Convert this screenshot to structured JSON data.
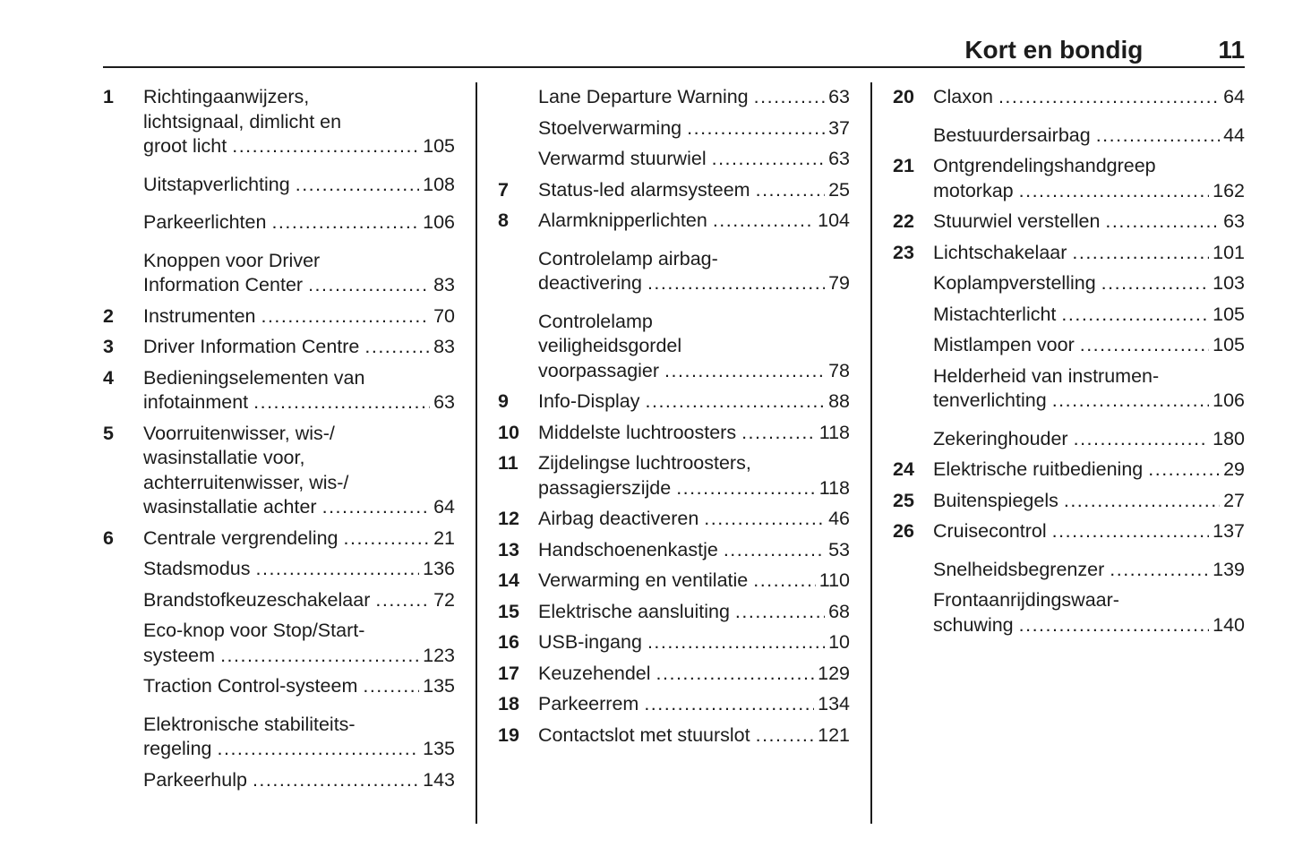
{
  "header": {
    "title": "Kort en bondig",
    "page_number": "11"
  },
  "columns": [
    {
      "entries": [
        {
          "num": "1",
          "lines": [
            "Richtingaanwijzers,",
            "lichtsignaal, dimlicht en",
            "groot licht"
          ],
          "page": "105",
          "gap": false
        },
        {
          "num": "",
          "lines": [
            "Uitstapverlichting"
          ],
          "page": "108",
          "gap": true
        },
        {
          "num": "",
          "lines": [
            "Parkeerlichten"
          ],
          "page": "106",
          "gap": true
        },
        {
          "num": "",
          "lines": [
            "Knoppen voor Driver",
            "Information Center"
          ],
          "page": "83",
          "gap": true
        },
        {
          "num": "2",
          "lines": [
            "Instrumenten"
          ],
          "page": "70",
          "gap": false
        },
        {
          "num": "3",
          "lines": [
            "Driver Information Centre"
          ],
          "page": "83",
          "gap": false
        },
        {
          "num": "4",
          "lines": [
            "Bedieningselementen van",
            "infotainment"
          ],
          "page": "63",
          "gap": false
        },
        {
          "num": "5",
          "lines": [
            "Voorruitenwisser, wis-/",
            "wasinstallatie voor,",
            "achterruitenwisser, wis-/",
            "wasinstallatie achter"
          ],
          "page": "64",
          "gap": false
        },
        {
          "num": "6",
          "lines": [
            "Centrale vergrendeling"
          ],
          "page": "21",
          "gap": false
        },
        {
          "num": "",
          "lines": [
            "Stadsmodus"
          ],
          "page": "136",
          "gap": false
        },
        {
          "num": "",
          "lines": [
            "Brandstofkeuzeschakelaar"
          ],
          "page": "72",
          "gap": false
        },
        {
          "num": "",
          "lines": [
            "Eco-knop voor Stop/Start-",
            "systeem"
          ],
          "page": "123",
          "gap": false
        },
        {
          "num": "",
          "lines": [
            "Traction Control-systeem"
          ],
          "page": "135",
          "gap": false
        },
        {
          "num": "",
          "lines": [
            "Elektronische stabiliteits-",
            "regeling"
          ],
          "page": "135",
          "gap": true
        },
        {
          "num": "",
          "lines": [
            "Parkeerhulp"
          ],
          "page": "143",
          "gap": false
        }
      ]
    },
    {
      "entries": [
        {
          "num": "",
          "lines": [
            "Lane Departure Warning"
          ],
          "page": "63",
          "gap": false
        },
        {
          "num": "",
          "lines": [
            "Stoelverwarming"
          ],
          "page": "37",
          "gap": false
        },
        {
          "num": "",
          "lines": [
            "Verwarmd stuurwiel"
          ],
          "page": "63",
          "gap": false
        },
        {
          "num": "7",
          "lines": [
            "Status-led alarmsysteem"
          ],
          "page": "25",
          "gap": false
        },
        {
          "num": "8",
          "lines": [
            "Alarmknipperlichten"
          ],
          "page": "104",
          "gap": false
        },
        {
          "num": "",
          "lines": [
            "Controlelamp airbag-",
            "deactivering"
          ],
          "page": "79",
          "gap": true
        },
        {
          "num": "",
          "lines": [
            "Controlelamp",
            "veiligheidsgordel",
            "voorpassagier"
          ],
          "page": "78",
          "gap": true
        },
        {
          "num": "9",
          "lines": [
            "Info-Display"
          ],
          "page": "88",
          "gap": false
        },
        {
          "num": "10",
          "lines": [
            "Middelste luchtroosters"
          ],
          "page": "118",
          "gap": false
        },
        {
          "num": "11",
          "lines": [
            "Zijdelingse luchtroosters,",
            "passagierszijde"
          ],
          "page": "118",
          "gap": false
        },
        {
          "num": "12",
          "lines": [
            "Airbag deactiveren"
          ],
          "page": "46",
          "gap": false
        },
        {
          "num": "13",
          "lines": [
            "Handschoenenkastje"
          ],
          "page": "53",
          "gap": false
        },
        {
          "num": "14",
          "lines": [
            "Verwarming en ventilatie"
          ],
          "page": "110",
          "gap": false
        },
        {
          "num": "15",
          "lines": [
            "Elektrische aansluiting"
          ],
          "page": "68",
          "gap": false
        },
        {
          "num": "16",
          "lines": [
            "USB-ingang"
          ],
          "page": "10",
          "gap": false
        },
        {
          "num": "17",
          "lines": [
            "Keuzehendel"
          ],
          "page": "129",
          "gap": false
        },
        {
          "num": "18",
          "lines": [
            "Parkeerrem"
          ],
          "page": "134",
          "gap": false
        },
        {
          "num": "19",
          "lines": [
            "Contactslot met stuurslot"
          ],
          "page": "121",
          "gap": false
        }
      ]
    },
    {
      "entries": [
        {
          "num": "20",
          "lines": [
            "Claxon"
          ],
          "page": "64",
          "gap": false
        },
        {
          "num": "",
          "lines": [
            "Bestuurdersairbag"
          ],
          "page": "44",
          "gap": true
        },
        {
          "num": "21",
          "lines": [
            "Ontgrendelingshandgreep",
            "motorkap"
          ],
          "page": "162",
          "gap": false
        },
        {
          "num": "22",
          "lines": [
            "Stuurwiel verstellen"
          ],
          "page": "63",
          "gap": false
        },
        {
          "num": "23",
          "lines": [
            "Lichtschakelaar"
          ],
          "page": "101",
          "gap": false
        },
        {
          "num": "",
          "lines": [
            "Koplampverstelling"
          ],
          "page": "103",
          "gap": false
        },
        {
          "num": "",
          "lines": [
            "Mistachterlicht"
          ],
          "page": "105",
          "gap": false
        },
        {
          "num": "",
          "lines": [
            "Mistlampen voor"
          ],
          "page": "105",
          "gap": false
        },
        {
          "num": "",
          "lines": [
            "Helderheid van instrumen-",
            "tenverlichting"
          ],
          "page": "106",
          "gap": false
        },
        {
          "num": "",
          "lines": [
            "Zekeringhouder"
          ],
          "page": "180",
          "gap": true
        },
        {
          "num": "24",
          "lines": [
            "Elektrische ruitbediening"
          ],
          "page": "29",
          "gap": false
        },
        {
          "num": "25",
          "lines": [
            "Buitenspiegels"
          ],
          "page": "27",
          "gap": false
        },
        {
          "num": "26",
          "lines": [
            "Cruisecontrol"
          ],
          "page": "137",
          "gap": false
        },
        {
          "num": "",
          "lines": [
            "Snelheidsbegrenzer"
          ],
          "page": "139",
          "gap": true
        },
        {
          "num": "",
          "lines": [
            "Frontaanrijdingswaar-",
            "schuwing"
          ],
          "page": "140",
          "gap": false
        }
      ]
    }
  ]
}
